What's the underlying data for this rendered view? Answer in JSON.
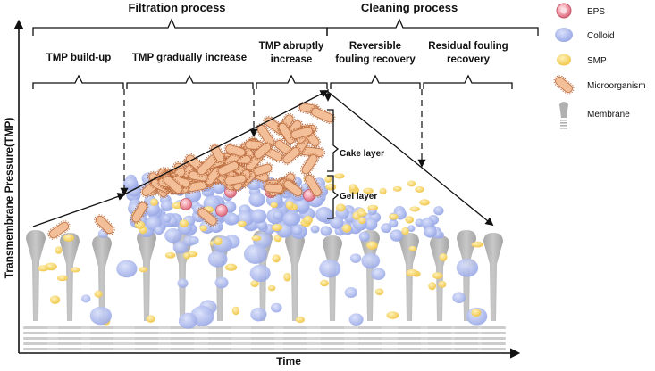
{
  "headers": {
    "filtration": "Filtration process",
    "cleaning": "Cleaning process"
  },
  "phases": {
    "tmp_build_up": "TMP build-up",
    "tmp_gradual": "TMP gradually increase",
    "tmp_abrupt_l1": "TMP abruptly",
    "tmp_abrupt_l2": "increase",
    "reversible_l1": "Reversible",
    "reversible_l2": "fouling recovery",
    "residual_l1": "Residual fouling",
    "residual_l2": "recovery"
  },
  "layers": {
    "cake": "Cake layer",
    "gel": "Gel layer"
  },
  "legend": {
    "eps": "EPS",
    "colloid": "Colloid",
    "smp": "SMP",
    "microorganism": "Microorganism",
    "membrane": "Membrane"
  },
  "axes": {
    "y_label": "Transmembrane Pressure(TMP)",
    "x_label": "Time"
  },
  "colors": {
    "eps": "#e98a98",
    "colloid": "#a9b8ec",
    "smp": "#f5d36a",
    "microorganism": "#f3bf99",
    "membrane": "#b4b4b4"
  }
}
